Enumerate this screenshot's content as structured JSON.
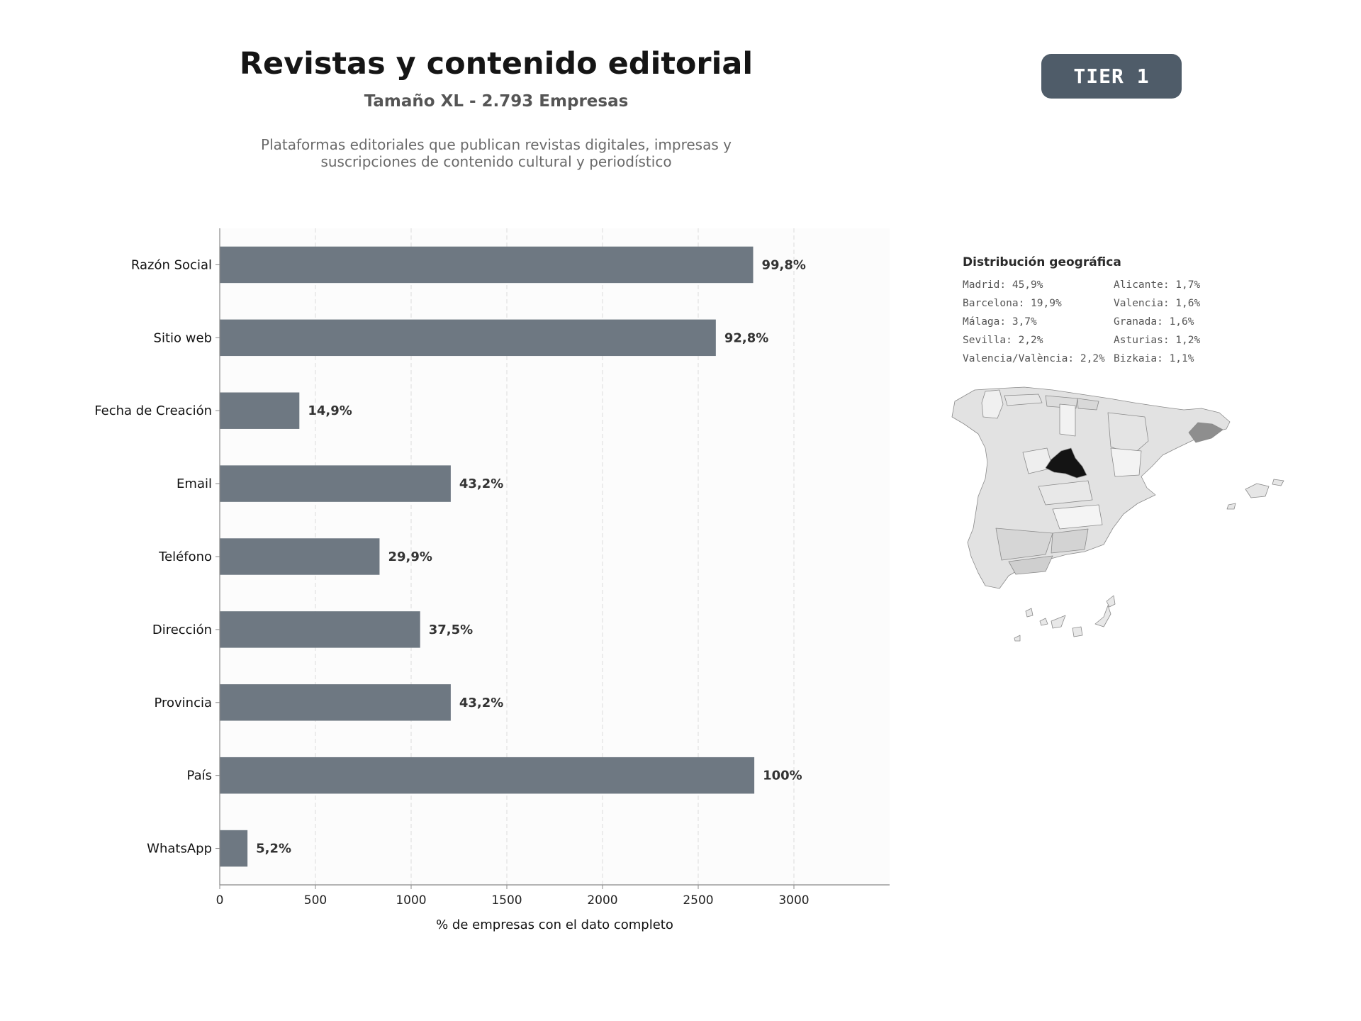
{
  "header": {
    "title": "Revistas y contenido editorial",
    "subtitle": "Tamaño XL - 2.793 Empresas",
    "description": "Plataformas editoriales que publican revistas digitales, impresas y suscripciones de contenido cultural y periodístico"
  },
  "badge": {
    "label": "TIER 1",
    "color": "#4f5c69"
  },
  "colors": {
    "bar": "#6e7882",
    "label": "#333333",
    "axis": "#888888",
    "plot_bg": "#fcfcfc"
  },
  "chart_data": {
    "type": "bar",
    "orientation": "horizontal",
    "categories": [
      "Razón Social",
      "Sitio web",
      "Fecha de Creación",
      "Email",
      "Teléfono",
      "Dirección",
      "Provincia",
      "País",
      "WhatsApp"
    ],
    "values": [
      2787,
      2592,
      416,
      1207,
      835,
      1047,
      1207,
      2793,
      145
    ],
    "data_labels": [
      "99,8%",
      "92,8%",
      "14,9%",
      "43,2%",
      "29,9%",
      "37,5%",
      "43,2%",
      "100%",
      "5,2%"
    ],
    "xticks": [
      0,
      500,
      1000,
      1500,
      2000,
      2500,
      3000
    ],
    "xlim": [
      0,
      3500
    ],
    "xlabel": "% de empresas con el dato completo",
    "ylabel": "",
    "grid": "vertical-dashed",
    "legend": "none"
  },
  "geo": {
    "title": "Distribución geográfica",
    "items": [
      "Madrid: 45,9%",
      "Alicante: 1,7%",
      "Barcelona: 19,9%",
      "Valencia: 1,6%",
      "Málaga: 3,7%",
      "Granada: 1,6%",
      "Sevilla: 2,2%",
      "Asturias: 1,2%",
      "Valencia/València: 2,2%",
      "Bizkaia: 1,1%"
    ]
  }
}
